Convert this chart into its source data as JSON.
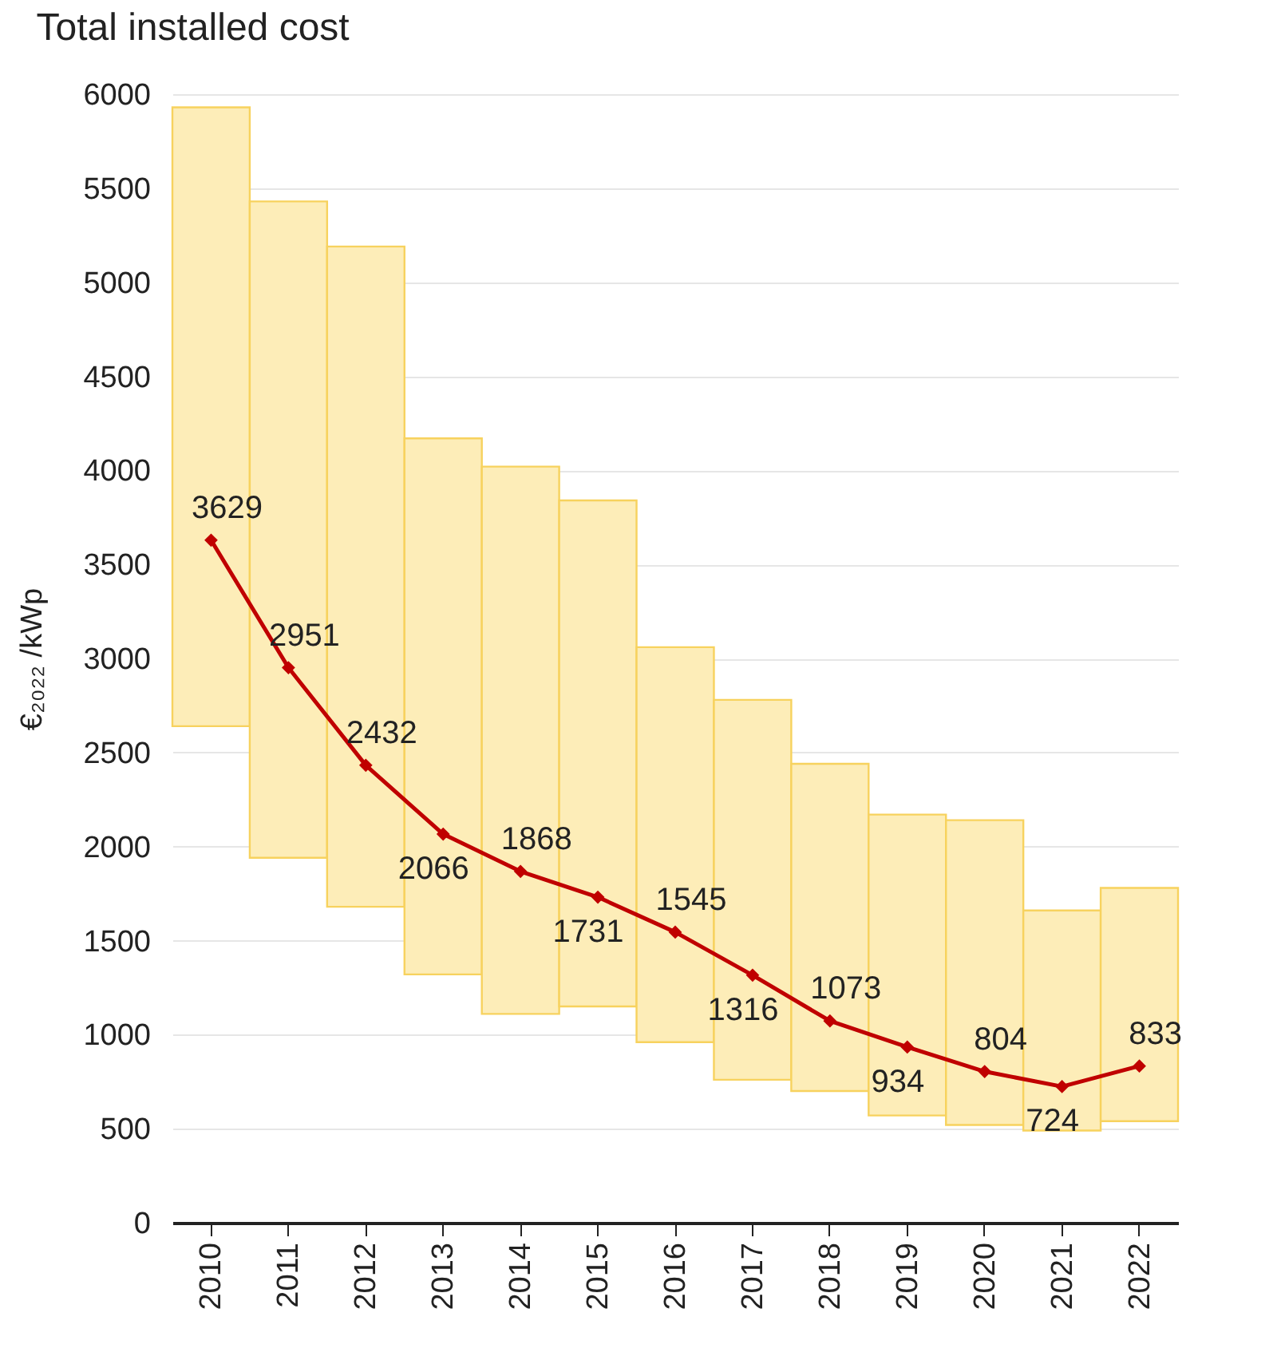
{
  "chart_data": {
    "type": "bar",
    "title": "Total installed cost",
    "ylabel": "€₂₀₂₂ /kWp",
    "categories": [
      "2010",
      "2011",
      "2012",
      "2013",
      "2014",
      "2015",
      "2016",
      "2017",
      "2018",
      "2019",
      "2020",
      "2021",
      "2022"
    ],
    "series": [
      {
        "color": "#fdedb8",
        "base": [
          2640,
          1940,
          1680,
          1320,
          1110,
          1150,
          960,
          760,
          700,
          570,
          520,
          490,
          540
        ],
        "values": [
          3290,
          3490,
          3510,
          2850,
          2910,
          2690,
          2100,
          2020,
          1740,
          1600,
          1620,
          1170,
          1240
        ]
      },
      {
        "type": "line",
        "color": "#c00000",
        "marker": "diamond",
        "line_style": "solid",
        "values": [
          3629,
          2951,
          2432,
          2066,
          1868,
          1731,
          1545,
          1316,
          1073,
          934,
          804,
          724,
          833
        ],
        "value_labels": [
          "3629",
          "2951",
          "2432",
          "2066",
          "1868",
          "1731",
          "1545",
          "1316",
          "1073",
          "934",
          "804",
          "724",
          "833"
        ]
      }
    ],
    "ylim": [
      0,
      6000
    ],
    "yticks": [
      0,
      500,
      1000,
      1500,
      2000,
      2500,
      3000,
      3500,
      4000,
      4500,
      5000,
      5500,
      6000
    ],
    "grid": "y"
  }
}
